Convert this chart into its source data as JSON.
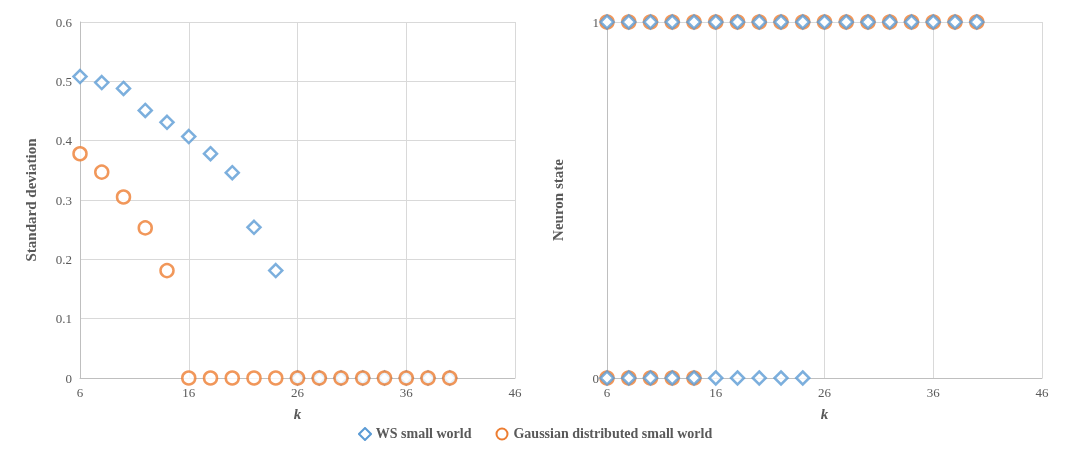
{
  "chart_data": [
    {
      "type": "scatter",
      "xlabel": "k",
      "ylabel": "Standard deviation",
      "xlim": [
        6,
        46
      ],
      "xticks": [
        6,
        16,
        26,
        36,
        46
      ],
      "ylim": [
        0,
        0.6
      ],
      "yticks": [
        0,
        0.1,
        0.2,
        0.3,
        0.4,
        0.5,
        0.6
      ],
      "grid": true,
      "legend": "bottom",
      "series": [
        {
          "name": "WS small world",
          "color": "#5b9bd5",
          "marker": "diamond",
          "x": [
            6,
            8,
            10,
            12,
            14,
            16,
            18,
            20,
            22,
            24,
            26,
            28,
            30,
            32,
            34,
            36,
            38,
            40
          ],
          "values": [
            0.508,
            0.498,
            0.488,
            0.451,
            0.431,
            0.407,
            0.378,
            0.346,
            0.254,
            0.181,
            0,
            0,
            0,
            0,
            0,
            0,
            0,
            0
          ]
        },
        {
          "name": "Gaussian distributed small world",
          "color": "#ed7d31",
          "marker": "circle",
          "x": [
            6,
            8,
            10,
            12,
            14,
            16,
            18,
            20,
            22,
            24,
            26,
            28,
            30,
            32,
            34,
            36,
            38,
            40
          ],
          "values": [
            0.378,
            0.347,
            0.305,
            0.253,
            0.181,
            0,
            0,
            0,
            0,
            0,
            0,
            0,
            0,
            0,
            0,
            0,
            0,
            0
          ]
        }
      ]
    },
    {
      "type": "scatter",
      "xlabel": "k",
      "ylabel": "Neuron state",
      "xlim": [
        6,
        46
      ],
      "xticks": [
        6,
        16,
        26,
        36,
        46
      ],
      "ylim": [
        0,
        1
      ],
      "yticks": [
        0,
        1
      ],
      "grid": true,
      "series": [
        {
          "color": "#ed7d31",
          "marker": "circle",
          "x": [
            6,
            8,
            10,
            12,
            14,
            16,
            18,
            20,
            22,
            24,
            26,
            28,
            30,
            32,
            34,
            36,
            38,
            40,
            6,
            8,
            10,
            12,
            14
          ],
          "values": [
            1,
            1,
            1,
            1,
            1,
            1,
            1,
            1,
            1,
            1,
            1,
            1,
            1,
            1,
            1,
            1,
            1,
            1,
            0,
            0,
            0,
            0,
            0
          ]
        },
        {
          "color": "#5b9bd5",
          "marker": "diamond",
          "x": [
            6,
            8,
            10,
            12,
            14,
            16,
            18,
            20,
            22,
            24,
            26,
            28,
            30,
            32,
            34,
            36,
            38,
            40,
            6,
            8,
            10,
            12,
            14,
            16,
            18,
            20,
            22,
            24
          ],
          "values": [
            1,
            1,
            1,
            1,
            1,
            1,
            1,
            1,
            1,
            1,
            1,
            1,
            1,
            1,
            1,
            1,
            1,
            1,
            0,
            0,
            0,
            0,
            0,
            0,
            0,
            0,
            0,
            0
          ]
        }
      ]
    }
  ]
}
